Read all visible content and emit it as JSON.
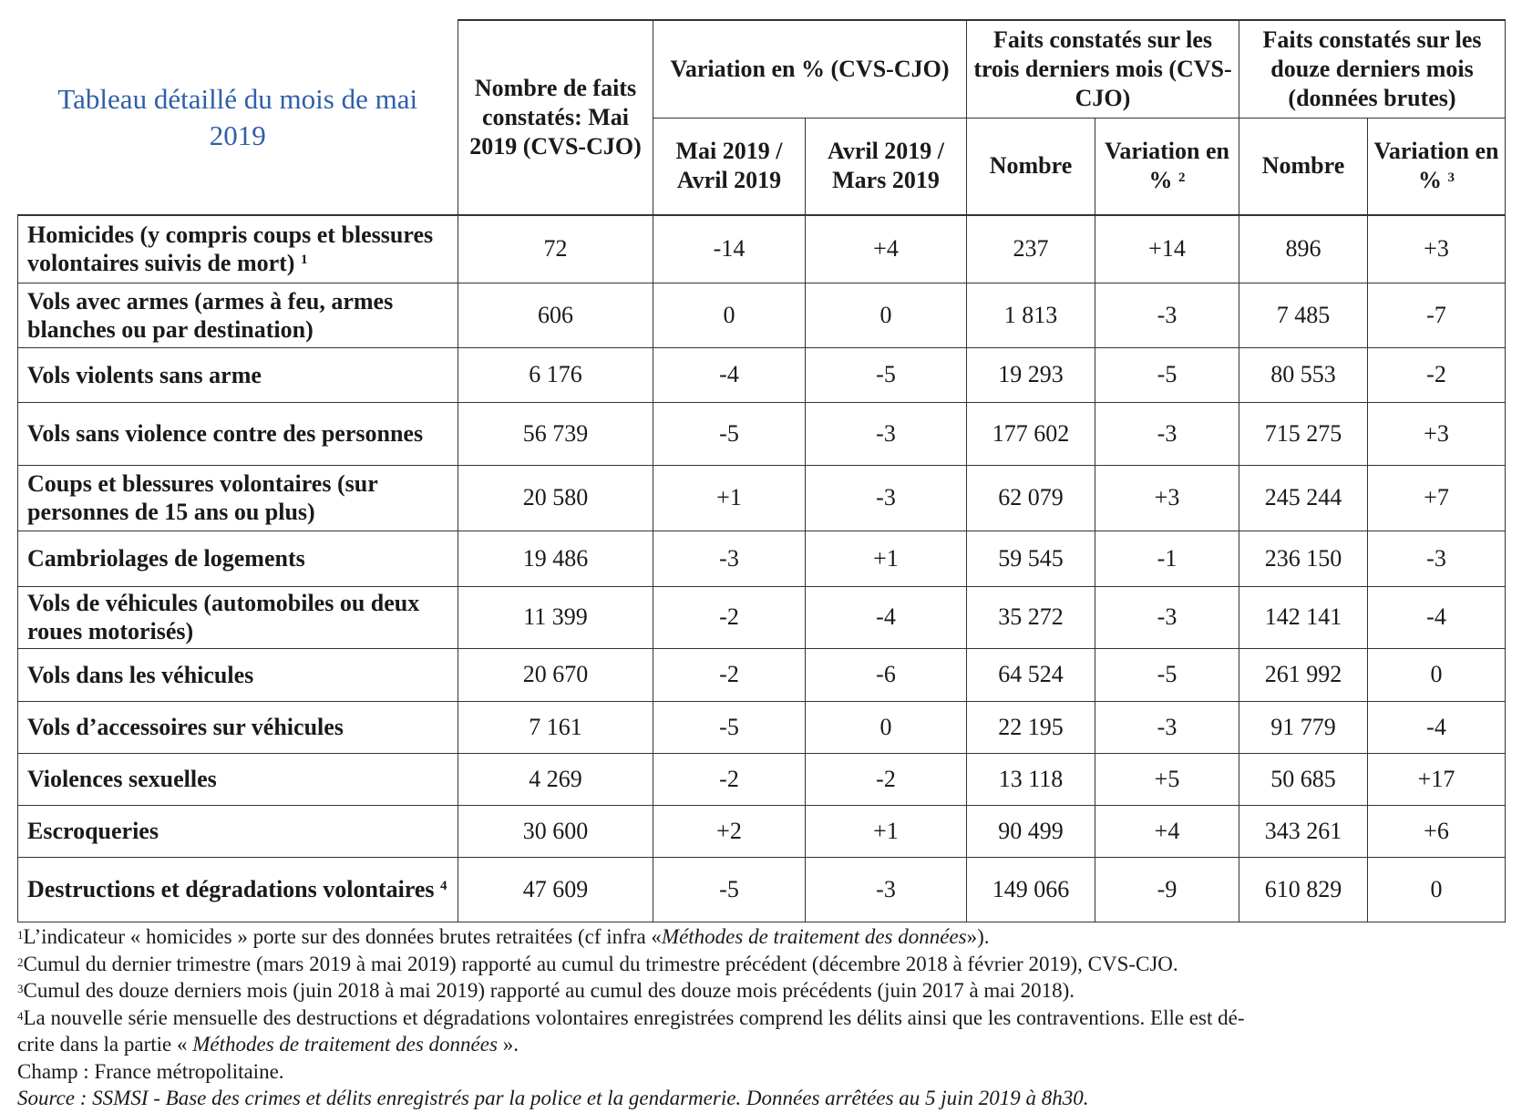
{
  "title": "Tableau détaillé du mois de mai 2019",
  "header": {
    "col_count": "Nombre de faits constatés: Mai 2019 (CVS-CJO)",
    "group_variation": "Variation en % (CVS-CJO)",
    "group_three": "Faits constatés sur les trois derniers mois (CVS-CJO)",
    "group_twelve": "Faits constatés sur les douze derniers mois (données brutes)",
    "sub_may_april": "Mai 2019 / Avril 2019",
    "sub_april_march": "Avril 2019 / Mars 2019",
    "sub_three_number": "Nombre",
    "sub_three_variation": "Variation en %",
    "sub_three_variation_note": "2",
    "sub_twelve_number": "Nombre",
    "sub_twelve_variation": "Variation en %",
    "sub_twelve_variation_note": "3"
  },
  "rows": [
    {
      "label": "Homicides (y compris coups et blessures volontaires suivis de mort)",
      "note": "1",
      "values": [
        "72",
        "-14",
        "+4",
        "237",
        "+14",
        "896",
        "+3"
      ]
    },
    {
      "label": "Vols avec armes (armes à feu, armes blanches ou par destination)",
      "note": "",
      "values": [
        "606",
        "0",
        "0",
        "1 813",
        "-3",
        "7 485",
        "-7"
      ]
    },
    {
      "label": "Vols violents sans arme",
      "note": "",
      "values": [
        "6 176",
        "-4",
        "-5",
        "19 293",
        "-5",
        "80 553",
        "-2"
      ]
    },
    {
      "label": "Vols sans violence contre des personnes",
      "note": "",
      "values": [
        "56 739",
        "-5",
        "-3",
        "177 602",
        "-3",
        "715 275",
        "+3"
      ]
    },
    {
      "label": "Coups et blessures volontaires (sur personnes de 15 ans ou plus)",
      "note": "",
      "values": [
        "20 580",
        "+1",
        "-3",
        "62 079",
        "+3",
        "245 244",
        "+7"
      ]
    },
    {
      "label": "Cambriolages de logements",
      "note": "",
      "values": [
        "19 486",
        "-3",
        "+1",
        "59 545",
        "-1",
        "236 150",
        "-3"
      ]
    },
    {
      "label": "Vols de véhicules (automobiles ou deux roues motorisés)",
      "note": "",
      "values": [
        "11 399",
        "-2",
        "-4",
        "35 272",
        "-3",
        "142 141",
        "-4"
      ]
    },
    {
      "label": "Vols dans les véhicules",
      "note": "",
      "values": [
        "20 670",
        "-2",
        "-6",
        "64 524",
        "-5",
        "261 992",
        "0"
      ]
    },
    {
      "label": "Vols d’accessoires sur véhicules",
      "note": "",
      "values": [
        "7 161",
        "-5",
        "0",
        "22 195",
        "-3",
        "91 779",
        "-4"
      ]
    },
    {
      "label": "Violences sexuelles",
      "note": "",
      "values": [
        "4 269",
        "-2",
        "-2",
        "13 118",
        "+5",
        "50 685",
        "+17"
      ]
    },
    {
      "label": "Escroqueries",
      "note": "",
      "values": [
        "30 600",
        "+2",
        "+1",
        "90 499",
        "+4",
        "343 261",
        "+6"
      ]
    },
    {
      "label": "Destructions et dégradations volontaires",
      "note": "4",
      "values": [
        "47 609",
        "-5",
        "-3",
        "149 066",
        "-9",
        "610 829",
        "0"
      ]
    }
  ],
  "footnotes": {
    "n1_mark": "1",
    "n1_text": "L’indicateur « homicides » porte sur des données brutes retraitées (cf infra «",
    "n1_italic": "Méthodes de traitement des données",
    "n1_end": "»).",
    "n2_mark": "2",
    "n2_text": "Cumul du dernier trimestre (mars 2019 à mai 2019) rapporté au cumul du trimestre précédent (décembre 2018 à février 2019), CVS-CJO.",
    "n3_mark": "3",
    "n3_text": "Cumul des douze derniers mois (juin 2018 à mai 2019) rapporté au cumul des douze mois précédents (juin 2017 à mai 2018).",
    "n4_mark": "4",
    "n4_text": "La nouvelle série mensuelle des destructions et dégradations volontaires enregistrées comprend les délits ainsi que les contraventions. Elle est dé-",
    "n4_text2": "crite dans la partie «",
    "n4_italic": "Méthodes de traitement des données",
    "n4_end": "».",
    "champ": "Champ : France métropolitaine.",
    "source": "Source : SSMSI - Base des crimes et délits enregistrés par la police et la gendarmerie. Données arrêtées au 5 juin 2019 à 8h30."
  }
}
